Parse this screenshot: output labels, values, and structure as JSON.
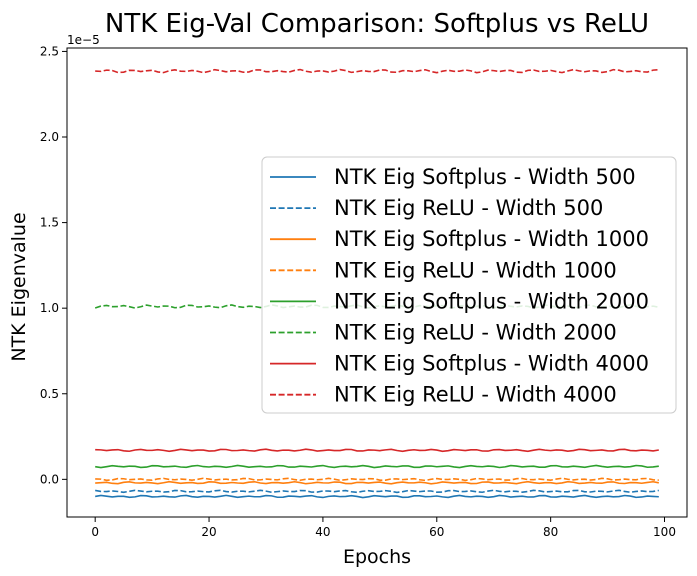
{
  "chart_data": {
    "type": "line",
    "title": "NTK Eig-Val Comparison: Softplus vs ReLU",
    "xlabel": "Epochs",
    "ylabel": "NTK Eigenvalue",
    "y_offset_label": "1e−5",
    "xlim": [
      -4.95,
      103.95
    ],
    "ylim": [
      -0.22,
      2.52
    ],
    "x_ticks": [
      0,
      20,
      40,
      60,
      80,
      100
    ],
    "y_ticks": [
      0.0,
      0.5,
      1.0,
      1.5,
      2.0,
      2.5
    ],
    "x_tick_labels": [
      "0",
      "20",
      "40",
      "60",
      "80",
      "100"
    ],
    "y_tick_labels": [
      "0.0",
      "0.5",
      "1.0",
      "1.5",
      "2.0",
      "2.5"
    ],
    "grid": false,
    "legend_position": "center-right",
    "epochs": {
      "start": 0,
      "end": 99
    },
    "series": [
      {
        "name": "NTK Eig Softplus - Width 500",
        "color": "#1f77b4",
        "dash": "solid",
        "level": -0.1
      },
      {
        "name": "NTK Eig ReLU - Width 500",
        "color": "#1f77b4",
        "dash": "dashed",
        "level": -0.07
      },
      {
        "name": "NTK Eig Softplus - Width 1000",
        "color": "#ff7f0e",
        "dash": "solid",
        "level": -0.02
      },
      {
        "name": "NTK Eig ReLU - Width 1000",
        "color": "#ff7f0e",
        "dash": "dashed",
        "level": 0.0
      },
      {
        "name": "NTK Eig Softplus - Width 2000",
        "color": "#2ca02c",
        "dash": "solid",
        "level": 0.075
      },
      {
        "name": "NTK Eig ReLU - Width 2000",
        "color": "#2ca02c",
        "dash": "dashed",
        "level": 1.01
      },
      {
        "name": "NTK Eig Softplus - Width 4000",
        "color": "#d62728",
        "dash": "solid",
        "level": 0.17
      },
      {
        "name": "NTK Eig ReLU - Width 4000",
        "color": "#d62728",
        "dash": "dashed",
        "level": 2.385
      }
    ]
  }
}
